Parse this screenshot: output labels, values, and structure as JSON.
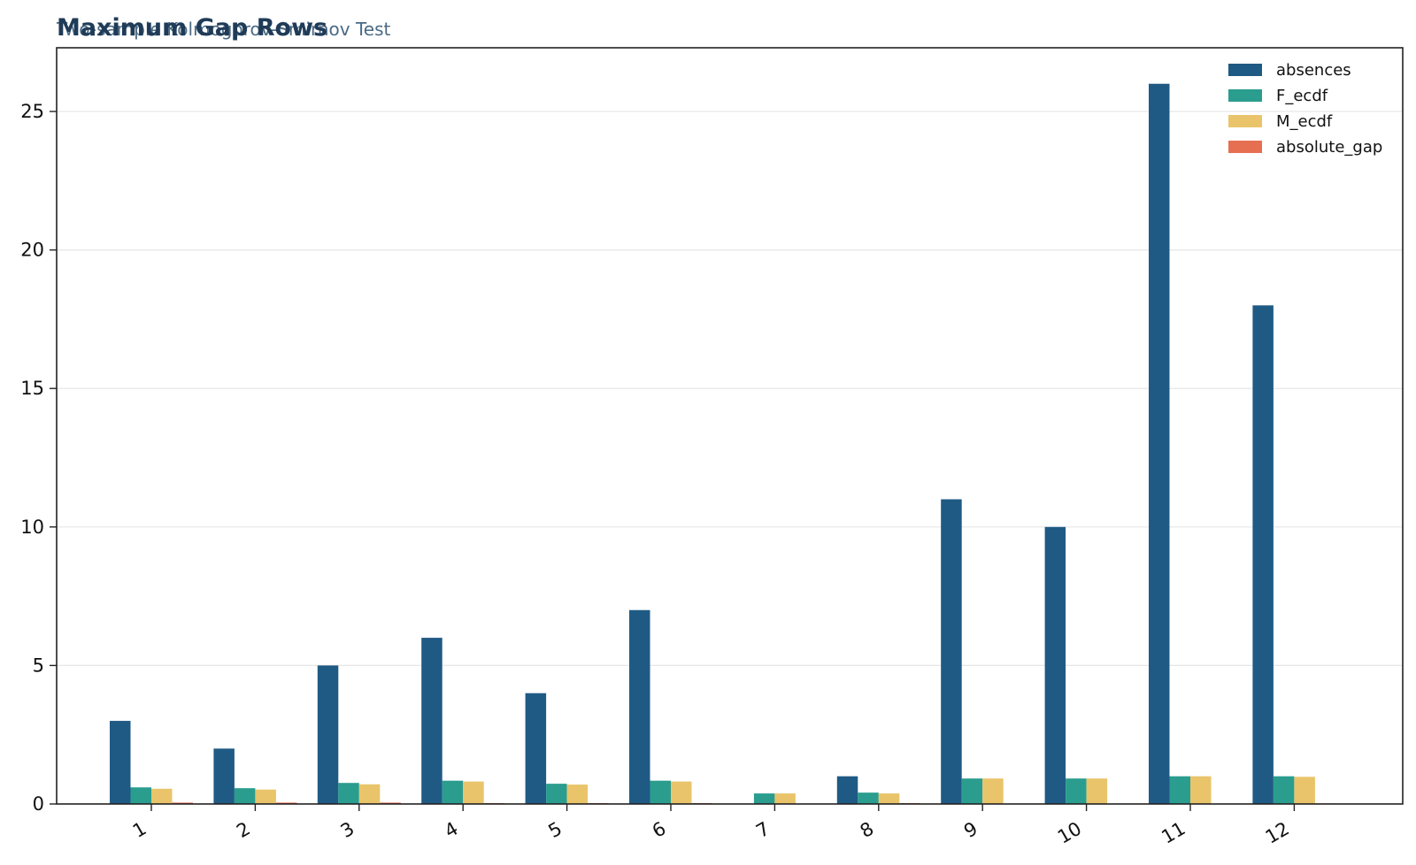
{
  "chart_data": {
    "type": "bar",
    "title": "Maximum Gap Rows",
    "subtitle": "Two-sample Kolmogorov-Smirnov Test",
    "xlabel": "",
    "ylabel": "",
    "categories": [
      "1",
      "2",
      "3",
      "4",
      "5",
      "6",
      "7",
      "8",
      "9",
      "10",
      "11",
      "12"
    ],
    "series": [
      {
        "name": "absences",
        "color": "#1f5a85",
        "values": [
          3,
          2,
          5,
          6,
          4,
          7,
          0,
          1,
          11,
          10,
          26,
          18
        ]
      },
      {
        "name": "F_ecdf",
        "color": "#2a9d8f",
        "values": [
          0.6,
          0.57,
          0.76,
          0.84,
          0.73,
          0.84,
          0.38,
          0.41,
          0.92,
          0.92,
          1.0,
          1.0
        ]
      },
      {
        "name": "M_ecdf",
        "color": "#e9c46a",
        "values": [
          0.55,
          0.52,
          0.71,
          0.81,
          0.7,
          0.81,
          0.38,
          0.38,
          0.92,
          0.92,
          1.0,
          0.98
        ]
      },
      {
        "name": "absolute_gap",
        "color": "#e76f51",
        "values": [
          0.05,
          0.05,
          0.05,
          0.03,
          0.03,
          0.03,
          0.0,
          0.03,
          0.0,
          0.0,
          0.0,
          0.02
        ]
      }
    ],
    "ylim": [
      0,
      27.3
    ],
    "yticks": [
      0,
      5,
      10,
      15,
      20,
      25
    ],
    "grid": "horizontal",
    "legend": "top-right"
  }
}
